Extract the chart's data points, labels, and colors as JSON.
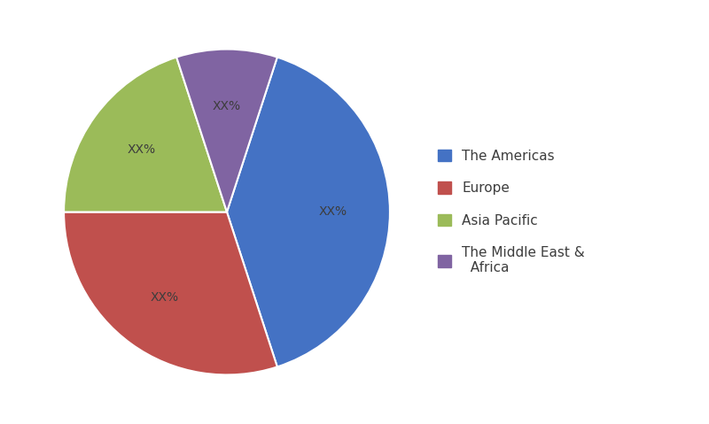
{
  "labels": [
    "The Americas",
    "Europe",
    "Asia Pacific",
    "The Middle East &\nAfrica"
  ],
  "legend_labels": [
    "The Americas",
    "Europe",
    "Asia Pacific",
    "The Middle East &\n  Africa"
  ],
  "values": [
    40,
    30,
    20,
    10
  ],
  "colors": [
    "#4472C4",
    "#C0504D",
    "#9BBB59",
    "#8064A2"
  ],
  "startangle": 72,
  "background_color": "#ffffff",
  "label_fontsize": 10,
  "legend_fontsize": 11
}
